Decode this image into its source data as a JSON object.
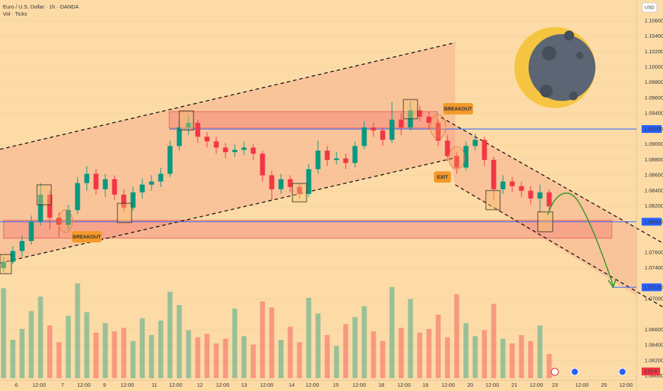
{
  "chart_data": {
    "type": "candlestick",
    "title": "Euro / U.S. Dollar · 1h · OANDA",
    "subtitle": "Vol · Ticks",
    "currency": "USD",
    "ylim": [
      1.059,
      1.1087
    ],
    "yticks": [
      {
        "value": 1.106,
        "label": "1.10600"
      },
      {
        "value": 1.104,
        "label": "1.10400"
      },
      {
        "value": 1.102,
        "label": "1.10200"
      },
      {
        "value": 1.1,
        "label": "1.10000"
      },
      {
        "value": 1.098,
        "label": "1.09800"
      },
      {
        "value": 1.096,
        "label": "1.09600"
      },
      {
        "value": 1.094,
        "label": "1.09400"
      },
      {
        "value": 1.09,
        "label": "1.09000"
      },
      {
        "value": 1.088,
        "label": "1.08800"
      },
      {
        "value": 1.086,
        "label": "1.08600"
      },
      {
        "value": 1.084,
        "label": "1.08400"
      },
      {
        "value": 1.082,
        "label": "1.08200"
      },
      {
        "value": 1.076,
        "label": "1.07600"
      },
      {
        "value": 1.074,
        "label": "1.07400"
      },
      {
        "value": 1.07,
        "label": "1.07000"
      },
      {
        "value": 1.066,
        "label": "1.06600"
      },
      {
        "value": 1.064,
        "label": "1.06400"
      },
      {
        "value": 1.062,
        "label": "1.06200"
      },
      {
        "value": 1.06,
        "label": "1.06000"
      }
    ],
    "levels": [
      {
        "value": 1.092,
        "label": "1.09200"
      },
      {
        "value": 1.08,
        "label": "1.08000"
      },
      {
        "value": 1.0715,
        "label": "1.07150"
      }
    ],
    "xticks": [
      "6",
      "12:00",
      "7",
      "12:00",
      "9",
      "12:00",
      "11",
      "12:00",
      "12",
      "12:00",
      "13",
      "12:00",
      "14",
      "12:00",
      "15",
      "12:00",
      "18",
      "12:00",
      "19",
      "12:00",
      "20",
      "12:00",
      "21",
      "12:00",
      "23",
      "12:00",
      "25",
      "12:00"
    ],
    "annotations": [
      "BREAKOUT",
      "BREAKOUT",
      "EXIT"
    ],
    "up_color": "#089981",
    "down_color": "#f23645",
    "candles": [
      [
        1.074,
        1.0755,
        1.0735,
        1.0748
      ],
      [
        1.0748,
        1.0768,
        1.0745,
        1.0762
      ],
      [
        1.0762,
        1.0782,
        1.0755,
        1.0775
      ],
      [
        1.0775,
        1.0808,
        1.077,
        1.08
      ],
      [
        1.08,
        1.085,
        1.0795,
        1.0835
      ],
      [
        1.0835,
        1.084,
        1.079,
        1.0805
      ],
      [
        1.0805,
        1.0812,
        1.078,
        1.0796
      ],
      [
        1.0796,
        1.0822,
        1.079,
        1.0815
      ],
      [
        1.0815,
        1.0858,
        1.081,
        1.085
      ],
      [
        1.085,
        1.0872,
        1.084,
        1.0862
      ],
      [
        1.0862,
        1.0868,
        1.0835,
        1.0842
      ],
      [
        1.0842,
        1.0862,
        1.0832,
        1.0855
      ],
      [
        1.0855,
        1.086,
        1.0828,
        1.0835
      ],
      [
        1.0835,
        1.0842,
        1.0812,
        1.0818
      ],
      [
        1.0818,
        1.0845,
        1.0814,
        1.0838
      ],
      [
        1.0838,
        1.0856,
        1.083,
        1.0848
      ],
      [
        1.0848,
        1.086,
        1.084,
        1.0852
      ],
      [
        1.0852,
        1.087,
        1.0845,
        1.0862
      ],
      [
        1.0862,
        1.0905,
        1.0858,
        1.0898
      ],
      [
        1.0898,
        1.093,
        1.0892,
        1.0922
      ],
      [
        1.0922,
        1.0938,
        1.0912,
        1.0928
      ],
      [
        1.0928,
        1.0932,
        1.0902,
        1.091
      ],
      [
        1.091,
        1.0916,
        1.0896,
        1.0904
      ],
      [
        1.0904,
        1.091,
        1.0888,
        1.0896
      ],
      [
        1.0896,
        1.0902,
        1.0882,
        1.089
      ],
      [
        1.089,
        1.09,
        1.0884,
        1.0893
      ],
      [
        1.0893,
        1.0904,
        1.0886,
        1.0896
      ],
      [
        1.0896,
        1.09,
        1.088,
        1.0888
      ],
      [
        1.0888,
        1.0892,
        1.0852,
        1.086
      ],
      [
        1.086,
        1.0866,
        1.0828,
        1.0842
      ],
      [
        1.0842,
        1.0862,
        1.0836,
        1.0855
      ],
      [
        1.0855,
        1.086,
        1.0838,
        1.0845
      ],
      [
        1.0845,
        1.085,
        1.083,
        1.0836
      ],
      [
        1.0836,
        1.0875,
        1.0832,
        1.0868
      ],
      [
        1.0868,
        1.0905,
        1.0862,
        1.0892
      ],
      [
        1.0892,
        1.0898,
        1.0872,
        1.088
      ],
      [
        1.088,
        1.089,
        1.0874,
        1.0882
      ],
      [
        1.0882,
        1.0888,
        1.0868,
        1.0876
      ],
      [
        1.0876,
        1.0904,
        1.087,
        1.0898
      ],
      [
        1.0898,
        1.093,
        1.0894,
        1.0922
      ],
      [
        1.0922,
        1.0928,
        1.091,
        1.0918
      ],
      [
        1.0918,
        1.0922,
        1.0898,
        1.0906
      ],
      [
        1.0906,
        1.0955,
        1.0902,
        1.0932
      ],
      [
        1.0932,
        1.094,
        1.0912,
        1.0922
      ],
      [
        1.0922,
        1.0956,
        1.0918,
        1.0944
      ],
      [
        1.0944,
        1.095,
        1.093,
        1.0936
      ],
      [
        1.0936,
        1.0942,
        1.092,
        1.0928
      ],
      [
        1.0928,
        1.0932,
        1.0898,
        1.0905
      ],
      [
        1.0905,
        1.0912,
        1.0878,
        1.0885
      ],
      [
        1.0885,
        1.089,
        1.0862,
        1.087
      ],
      [
        1.087,
        1.0904,
        1.0866,
        1.0898
      ],
      [
        1.0898,
        1.0914,
        1.0892,
        1.0906
      ],
      [
        1.0906,
        1.091,
        1.0872,
        1.088
      ],
      [
        1.088,
        1.0884,
        1.0828,
        1.0842
      ],
      [
        1.0842,
        1.086,
        1.0836,
        1.0852
      ],
      [
        1.0852,
        1.0858,
        1.0838,
        1.0846
      ],
      [
        1.0846,
        1.0852,
        1.0832,
        1.084
      ],
      [
        1.084,
        1.0846,
        1.0822,
        1.083
      ],
      [
        1.083,
        1.0848,
        1.0812,
        1.0838
      ],
      [
        1.0838,
        1.0842,
        1.0812,
        1.082
      ]
    ],
    "volume": [
      7.5,
      3.2,
      4.1,
      5.6,
      6.8,
      4.4,
      3.0,
      5.2,
      7.9,
      5.5,
      3.8,
      4.6,
      3.9,
      4.2,
      3.1,
      5.0,
      3.6,
      4.8,
      7.2,
      6.1,
      4.0,
      3.4,
      3.7,
      2.9,
      3.3,
      5.8,
      3.5,
      2.8,
      6.4,
      5.9,
      3.2,
      4.3,
      3.0,
      6.7,
      5.4,
      3.6,
      2.7,
      4.5,
      5.1,
      6.0,
      3.9,
      3.1,
      7.6,
      4.2,
      6.6,
      3.8,
      4.1,
      5.3,
      3.4,
      7.0,
      4.6,
      3.5,
      4.0,
      6.2,
      3.3,
      2.9,
      3.6,
      3.1,
      4.4,
      2.02
    ],
    "last_volume_label": "2.02 K"
  }
}
